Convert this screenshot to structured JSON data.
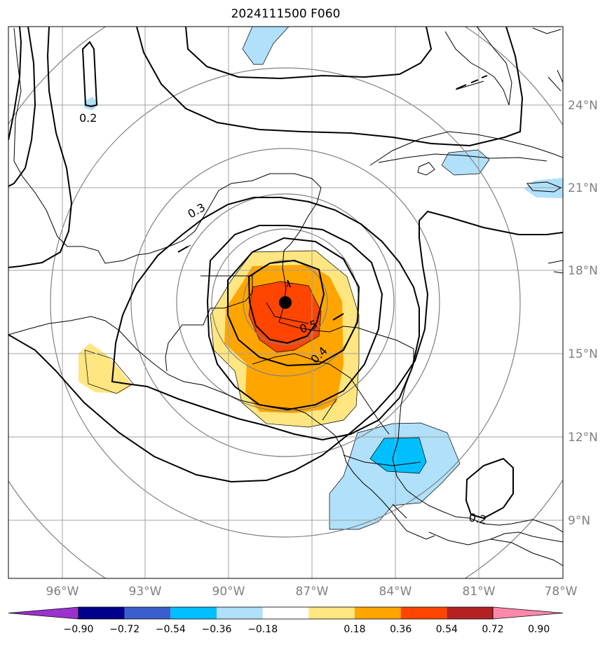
{
  "title": "2024111500 F060",
  "map": {
    "lat_labels": [
      "24°N",
      "21°N",
      "18°N",
      "15°N",
      "12°N",
      "9°N"
    ],
    "lon_labels": [
      "96°W",
      "93°W",
      "90°W",
      "87°W",
      "84°W",
      "81°W",
      "78°W"
    ],
    "contour_labels": [
      "0.2",
      "0.3",
      "0.4",
      "0.5",
      "0.2"
    ],
    "storm_center": "black-dot-marker"
  },
  "colorbar": {
    "ticks": [
      "−0.90",
      "−0.72",
      "−0.54",
      "−0.36",
      "−0.18",
      "0.18",
      "0.36",
      "0.54",
      "0.72",
      "0.90"
    ],
    "colors": [
      "#9932cc",
      "#00008b",
      "#3a5fcd",
      "#00bfff",
      "#b0e0fa",
      "#ffffff",
      "#ffe680",
      "#ffa500",
      "#ff4500",
      "#b22222",
      "#ff88aa"
    ]
  }
}
